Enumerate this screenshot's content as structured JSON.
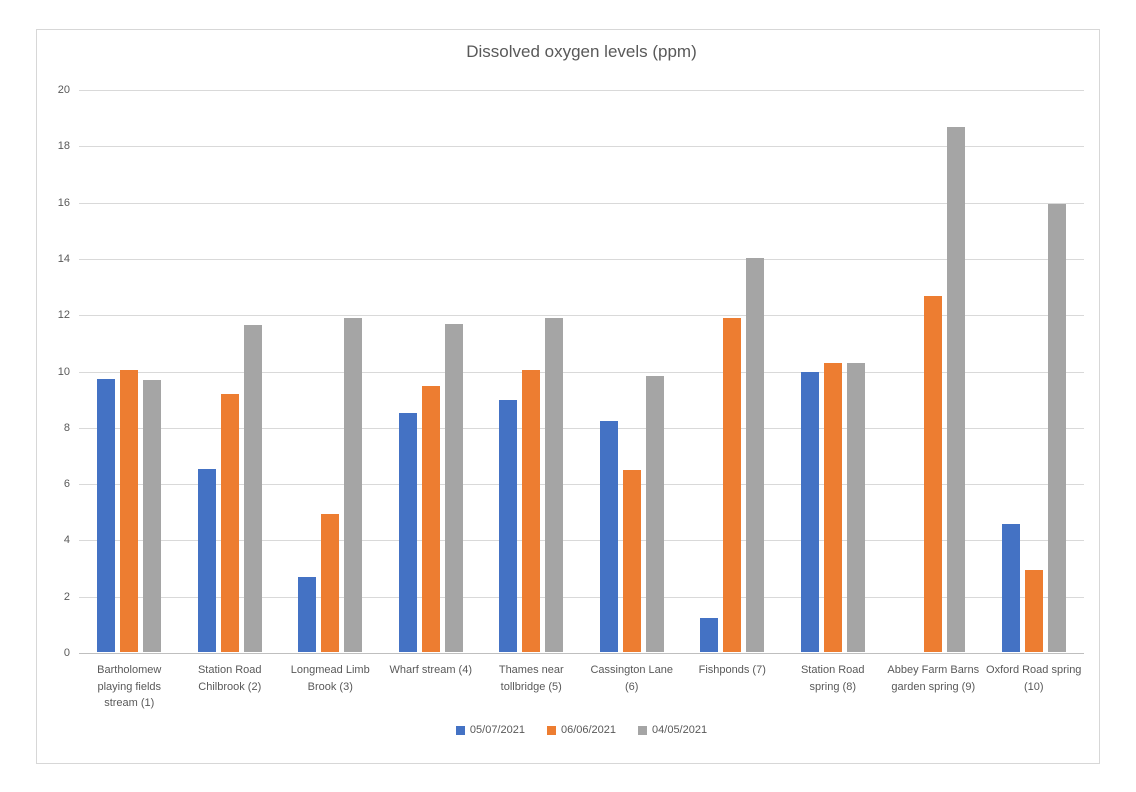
{
  "chart_data": {
    "type": "bar",
    "title": "Dissolved oxygen levels (ppm)",
    "categories": [
      "Bartholomew playing fields stream (1)",
      "Station Road Chilbrook (2)",
      "Longmead Limb Brook (3)",
      "Wharf stream (4)",
      "Thames near tollbridge (5)",
      "Cassington Lane (6)",
      "Fishponds (7)",
      "Station Road spring (8)",
      "Abbey Farm Barns garden spring (9)",
      "Oxford Road spring (10)"
    ],
    "series": [
      {
        "name": "05/07/2021",
        "color": "#4472C4",
        "values": [
          9.7,
          6.5,
          2.65,
          8.5,
          8.95,
          8.2,
          1.2,
          9.95,
          0,
          4.55
        ]
      },
      {
        "name": "06/06/2021",
        "color": "#ED7D31",
        "values": [
          10.0,
          9.15,
          4.9,
          9.45,
          10.0,
          6.45,
          11.85,
          10.25,
          12.65,
          2.9
        ]
      },
      {
        "name": "04/05/2021",
        "color": "#A5A5A5",
        "values": [
          9.65,
          11.6,
          11.85,
          11.65,
          11.85,
          9.8,
          14.0,
          10.25,
          18.65,
          15.9
        ]
      }
    ],
    "xlabel": "",
    "ylabel": "",
    "ylim": [
      0,
      20
    ],
    "yticks": [
      20,
      18,
      16,
      14,
      12,
      10,
      8,
      6,
      4,
      2,
      0
    ],
    "grid": true,
    "legend_position": "bottom",
    "colors": {
      "text": "#595959",
      "gridline": "#D9D9D9",
      "axis_line": "#BFBFBF",
      "frame_border": "#D7D7D7",
      "background": "#FFFFFF"
    }
  }
}
